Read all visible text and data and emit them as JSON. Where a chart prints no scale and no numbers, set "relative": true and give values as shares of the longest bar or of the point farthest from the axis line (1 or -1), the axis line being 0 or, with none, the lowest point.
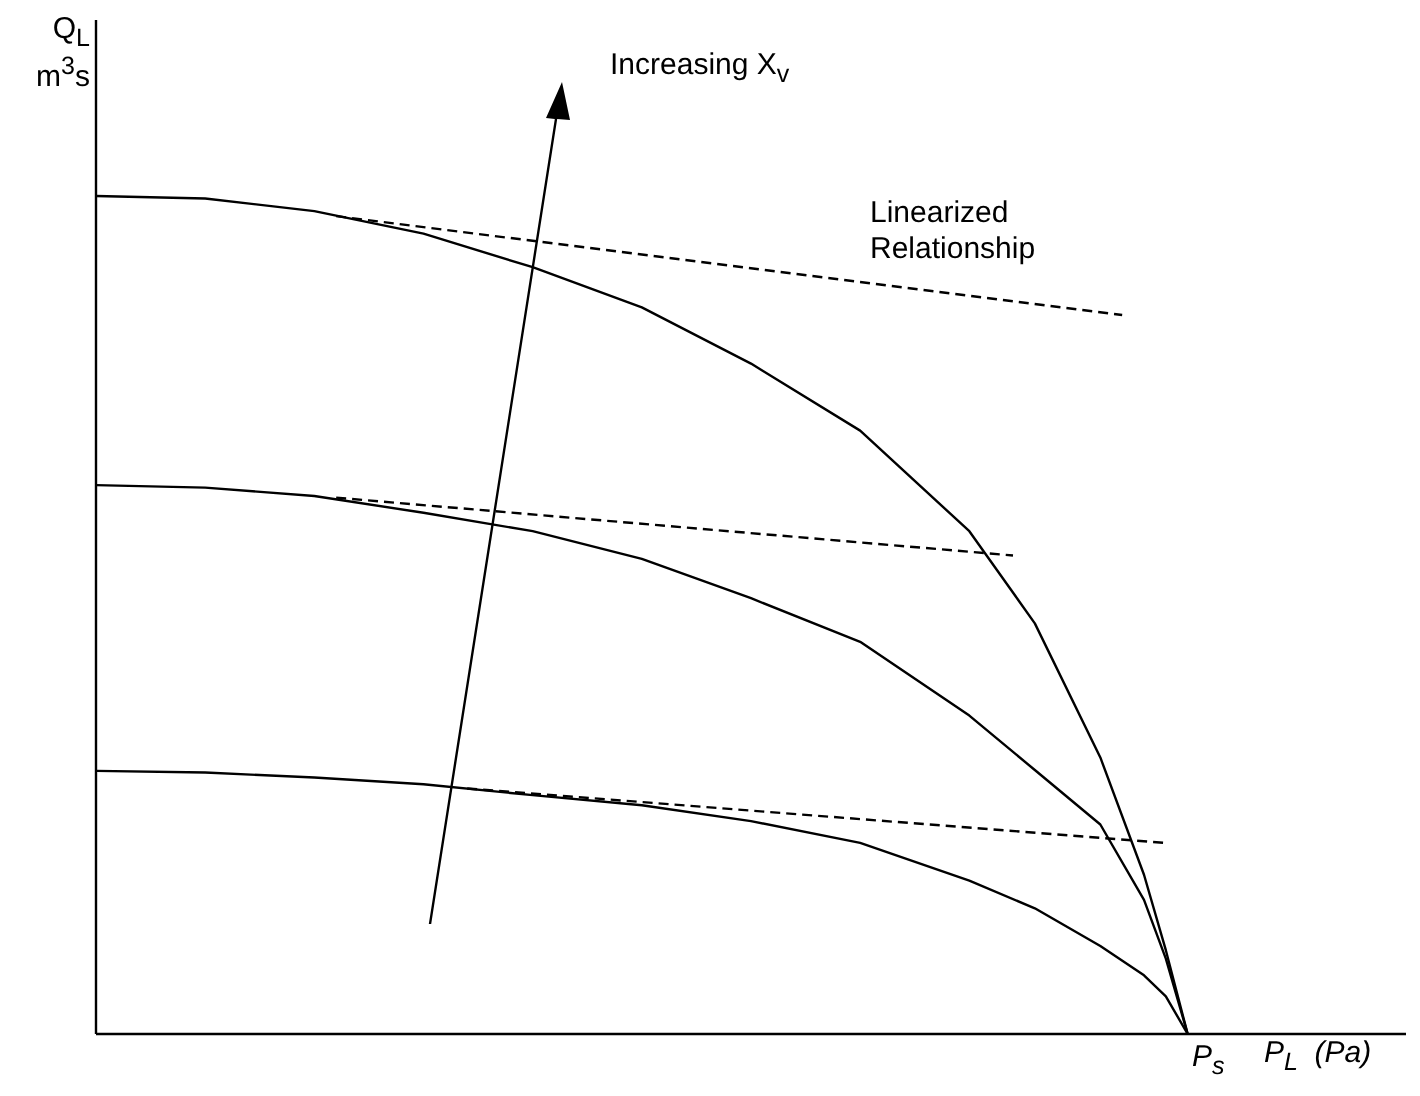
{
  "chart_data": {
    "type": "line",
    "relative": true,
    "xlabel": "P$_{L}$  (Pa)",
    "ylabel": "Q$_{L}$ m$^{3}$s",
    "marker": "none",
    "annotations": [
      "Increasing X$_{v}$",
      "Linearized Relationship",
      "P$_{s}$"
    ],
    "categories": [
      null,
      null,
      null,
      null,
      null,
      null,
      null,
      null,
      null,
      null,
      null,
      null,
      null,
      null,
      null,
      null,
      null,
      null,
      null,
      null,
      null,
      null,
      null,
      null,
      null,
      null,
      null,
      null,
      null,
      null,
      null,
      null,
      null,
      null,
      null,
      null,
      null,
      null,
      null,
      null,
      null,
      null,
      null,
      null,
      null,
      null,
      null,
      null,
      null,
      null,
      null,
      null,
      null,
      null,
      null,
      null,
      null,
      null,
      null,
      null,
      null
    ],
    "series": [
      {
        "color": "#000000",
        "line_style": "solid",
        "values": [
          1,
          null,
          null,
          null,
          null,
          0.997,
          null,
          null,
          null,
          null,
          0.982,
          null,
          null,
          null,
          null,
          0.955,
          null,
          null,
          null,
          null,
          0.915,
          null,
          null,
          null,
          null,
          0.867,
          null,
          null,
          null,
          null,
          0.8,
          null,
          null,
          null,
          null,
          0.72,
          null,
          null,
          null,
          null,
          0.6,
          null,
          null,
          0.49,
          null,
          null,
          0.33,
          null,
          0.19,
          0.1,
          0,
          null,
          null,
          null,
          null,
          null,
          null,
          null,
          null,
          null,
          null
        ]
      },
      {
        "color": "#000000",
        "line_style": "solid",
        "values": [
          0.655,
          null,
          null,
          null,
          null,
          0.652,
          null,
          null,
          null,
          null,
          0.642,
          null,
          null,
          null,
          null,
          0.622,
          null,
          null,
          null,
          null,
          0.6,
          null,
          null,
          null,
          null,
          0.567,
          null,
          null,
          null,
          null,
          0.52,
          null,
          null,
          null,
          null,
          0.468,
          null,
          null,
          null,
          null,
          0.38,
          null,
          null,
          0.315,
          null,
          null,
          0.25,
          null,
          0.16,
          0.09,
          0,
          null,
          null,
          null,
          null,
          null,
          null,
          null,
          null,
          null,
          null
        ]
      },
      {
        "color": "#000000",
        "line_style": "solid",
        "values": [
          0.314,
          null,
          null,
          null,
          null,
          0.312,
          null,
          null,
          null,
          null,
          0.306,
          null,
          null,
          null,
          null,
          0.298,
          null,
          null,
          null,
          null,
          0.285,
          null,
          null,
          null,
          null,
          0.273,
          null,
          null,
          null,
          null,
          0.254,
          null,
          null,
          null,
          null,
          0.228,
          null,
          null,
          null,
          null,
          0.183,
          null,
          null,
          0.15,
          null,
          null,
          0.105,
          null,
          0.07,
          0.045,
          0,
          null,
          null,
          null,
          null,
          null,
          null,
          null,
          null,
          null,
          null
        ]
      },
      {
        "color": "#000000",
        "line_style": "dashed",
        "values": [
          null,
          null,
          null,
          null,
          null,
          null,
          null,
          null,
          null,
          null,
          null,
          0.976,
          null,
          null,
          null,
          null,
          null,
          null,
          null,
          null,
          null,
          null,
          null,
          null,
          null,
          null,
          null,
          null,
          null,
          null,
          null,
          null,
          null,
          null,
          null,
          null,
          null,
          null,
          null,
          null,
          null,
          null,
          null,
          null,
          null,
          null,
          null,
          0.858,
          null,
          null,
          null,
          null,
          null,
          null,
          null,
          null,
          null,
          null,
          null,
          null,
          null
        ]
      },
      {
        "color": "#000000",
        "line_style": "dashed",
        "values": [
          null,
          null,
          null,
          null,
          null,
          null,
          null,
          null,
          null,
          null,
          null,
          0.64,
          null,
          null,
          null,
          null,
          null,
          null,
          null,
          null,
          null,
          null,
          null,
          null,
          null,
          null,
          null,
          null,
          null,
          null,
          null,
          null,
          null,
          null,
          null,
          null,
          null,
          null,
          null,
          null,
          null,
          null,
          0.571,
          null,
          null,
          null,
          null,
          null,
          null,
          null,
          null,
          null,
          null,
          null,
          null,
          null,
          null,
          null,
          null,
          null,
          null
        ]
      },
      {
        "color": "#000000",
        "line_style": "dashed",
        "values": [
          null,
          null,
          null,
          null,
          null,
          null,
          null,
          null,
          null,
          null,
          null,
          null,
          null,
          null,
          null,
          null,
          null,
          0.293,
          null,
          null,
          null,
          null,
          null,
          null,
          null,
          null,
          null,
          null,
          null,
          null,
          null,
          null,
          null,
          null,
          null,
          null,
          null,
          null,
          null,
          null,
          null,
          null,
          null,
          null,
          null,
          null,
          null,
          null,
          null,
          0.228,
          null,
          null,
          null,
          null,
          null,
          null,
          null,
          null,
          null,
          null,
          null
        ]
      }
    ]
  }
}
